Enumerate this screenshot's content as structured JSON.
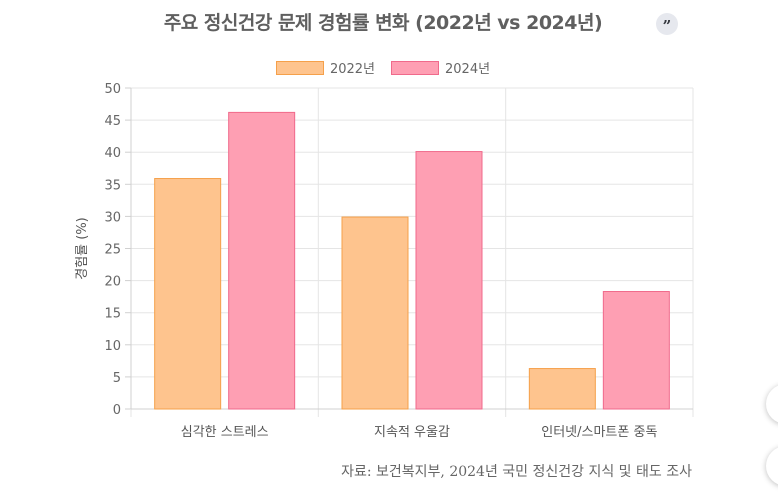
{
  "page_title": "주요 정신건강 문제 경험률 변화 (2022년 vs 2024년)",
  "quote_button_icon": "quote-icon",
  "quote_button_glyph": "”",
  "source": "자료: 보건복지부, 2024년 국민 정신건강 지식 및 태도 조사",
  "chart_data": {
    "type": "bar",
    "title": "주요 정신건강 문제 경험률 변화 (2022년 vs 2024년)",
    "xlabel": "",
    "ylabel": "경험률 (%)",
    "ylim": [
      0,
      50
    ],
    "yticks": [
      "0",
      "5",
      "10",
      "15",
      "20",
      "25",
      "30",
      "35",
      "40",
      "45",
      "50"
    ],
    "grid": true,
    "legend_position": "top",
    "categories": [
      "심각한 스트레스",
      "지속적 우울감",
      "인터넷/스마트폰 중독"
    ],
    "series": [
      {
        "name": "2022년",
        "values": [
          35.9,
          29.9,
          6.3
        ],
        "fill": "#fec48e",
        "stroke": "#f5a04a"
      },
      {
        "name": "2024년",
        "values": [
          46.2,
          40.1,
          18.3
        ],
        "fill": "#fe9fb3",
        "stroke": "#f06a8b"
      }
    ]
  }
}
